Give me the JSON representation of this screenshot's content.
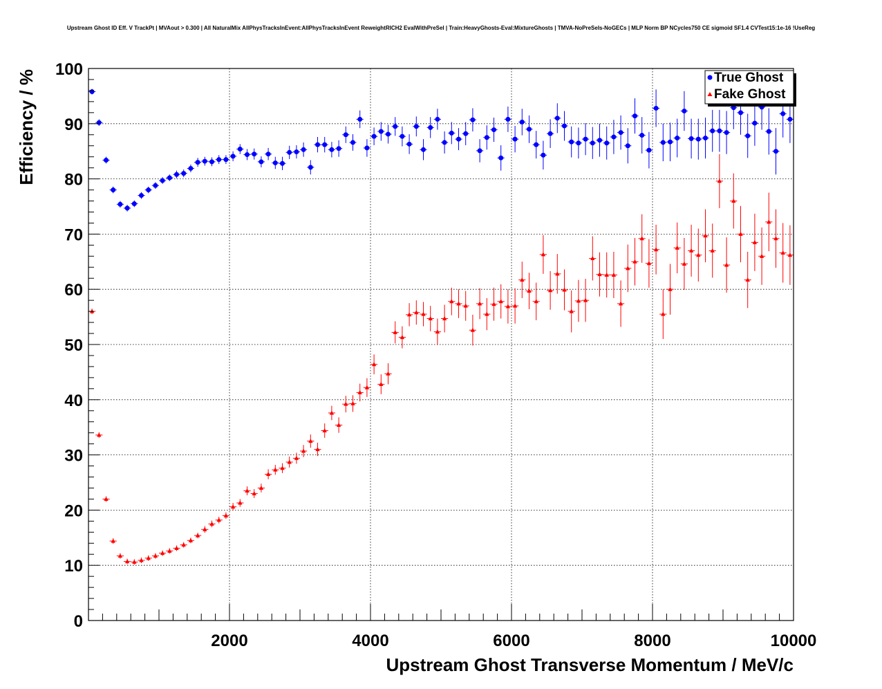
{
  "chart_data": {
    "type": "scatter",
    "title": "Upstream Ghost ID Eff. V TrackPt | MVAout > 0.300 | All NaturalMix AllPhysTracksInEvent:AllPhysTracksInEvent ReweightRICH2 EvalWithPreSel | Train:HeavyGhosts-Eval:MixtureGhosts | TMVA-NoPreSels-NoGECs | MLP Norm BP NCycles750 CE sigmoid SF1.4 CVTest15:1e-16 !UseReg",
    "xlabel": "Upstream Ghost Transverse Momentum / MeV/c",
    "ylabel": "Efficiency / %",
    "xlim": [
      0,
      10000
    ],
    "ylim": [
      0,
      100
    ],
    "grid": true,
    "legend_position": "top-right",
    "x_ticks": [
      "2000",
      "4000",
      "6000",
      "8000",
      "10000"
    ],
    "y_ticks": [
      "0",
      "10",
      "20",
      "30",
      "40",
      "50",
      "60",
      "70",
      "80",
      "90",
      "100"
    ],
    "x": [
      50,
      150,
      250,
      350,
      450,
      550,
      650,
      750,
      850,
      950,
      1050,
      1150,
      1250,
      1350,
      1450,
      1550,
      1650,
      1750,
      1850,
      1950,
      2050,
      2150,
      2250,
      2350,
      2450,
      2550,
      2650,
      2750,
      2850,
      2950,
      3050,
      3150,
      3250,
      3350,
      3450,
      3550,
      3650,
      3750,
      3850,
      3950,
      4050,
      4150,
      4250,
      4350,
      4450,
      4550,
      4650,
      4750,
      4850,
      4950,
      5050,
      5150,
      5250,
      5350,
      5450,
      5550,
      5650,
      5750,
      5850,
      5950,
      6050,
      6150,
      6250,
      6350,
      6450,
      6550,
      6650,
      6750,
      6850,
      6950,
      7050,
      7150,
      7250,
      7350,
      7450,
      7550,
      7650,
      7750,
      7850,
      7950,
      8050,
      8150,
      8250,
      8350,
      8450,
      8550,
      8650,
      8750,
      8850,
      8950,
      9050,
      9150,
      9250,
      9350,
      9450,
      9550,
      9650,
      9750,
      9850,
      9950
    ],
    "series": [
      {
        "name": "True Ghost",
        "marker": "circle",
        "color": "#0000ff",
        "values": [
          95.8,
          90.2,
          83.4,
          78.0,
          75.4,
          74.7,
          75.5,
          77.0,
          78.0,
          78.8,
          79.7,
          80.2,
          80.8,
          81.0,
          81.9,
          83.0,
          83.2,
          83.1,
          83.5,
          83.5,
          84.1,
          85.4,
          84.4,
          84.5,
          83.1,
          84.5,
          82.9,
          82.8,
          84.8,
          84.9,
          85.3,
          82.1,
          86.2,
          86.2,
          85.3,
          85.5,
          88.0,
          86.6,
          90.8,
          85.6,
          87.7,
          88.6,
          88.1,
          89.5,
          87.7,
          86.3,
          89.5,
          85.3,
          89.3,
          90.8,
          86.6,
          88.3,
          87.2,
          88.2,
          90.7,
          85.1,
          87.5,
          88.9,
          83.8,
          90.8,
          87.2,
          90.3,
          89.0,
          86.2,
          84.3,
          88.2,
          91.0,
          89.6,
          86.7,
          86.5,
          87.2,
          86.5,
          87.0,
          86.5,
          87.6,
          88.4,
          86.0,
          91.4,
          87.9,
          85.2,
          92.8,
          86.6,
          86.7,
          87.4,
          92.3,
          87.3,
          87.2,
          87.4,
          88.7,
          88.7,
          88.4,
          92.9,
          92.0,
          87.8,
          90.1,
          93.0,
          88.6,
          85.0,
          91.8,
          90.8
        ],
        "errors": [
          0.5,
          0.6,
          0.6,
          0.6,
          0.6,
          0.6,
          0.6,
          0.6,
          0.6,
          0.6,
          0.6,
          0.6,
          0.7,
          0.7,
          0.7,
          0.8,
          0.8,
          0.8,
          0.8,
          0.8,
          0.9,
          0.9,
          1.0,
          1.0,
          1.0,
          1.1,
          1.1,
          1.2,
          1.2,
          1.2,
          1.3,
          1.3,
          1.4,
          1.4,
          1.4,
          1.5,
          1.5,
          1.5,
          1.6,
          1.6,
          1.6,
          1.7,
          1.7,
          1.7,
          1.8,
          1.8,
          1.8,
          1.9,
          1.9,
          1.9,
          2.0,
          2.0,
          2.0,
          2.1,
          2.1,
          2.1,
          2.2,
          2.2,
          2.3,
          2.3,
          2.4,
          2.4,
          2.5,
          2.5,
          2.6,
          2.6,
          2.7,
          2.7,
          2.8,
          2.8,
          2.9,
          2.9,
          3.0,
          3.0,
          3.1,
          3.1,
          3.2,
          3.2,
          3.3,
          3.3,
          3.4,
          3.4,
          3.5,
          3.5,
          3.6,
          3.6,
          3.7,
          3.7,
          3.8,
          3.8,
          3.9,
          3.9,
          4.0,
          4.0,
          4.1,
          4.1,
          4.2,
          4.2,
          4.3,
          4.3
        ]
      },
      {
        "name": "Fake Ghost",
        "marker": "triangle",
        "color": "#ff0000",
        "values": [
          56.0,
          33.6,
          22.0,
          14.4,
          11.7,
          10.7,
          10.6,
          10.9,
          11.3,
          11.7,
          12.2,
          12.6,
          13.1,
          13.7,
          14.5,
          15.4,
          16.5,
          17.5,
          18.2,
          19.0,
          20.6,
          21.3,
          23.5,
          23.0,
          24.0,
          26.5,
          27.3,
          27.6,
          28.7,
          29.4,
          30.7,
          32.5,
          31.0,
          34.4,
          37.6,
          35.4,
          39.2,
          39.3,
          41.3,
          42.2,
          46.4,
          42.8,
          44.7,
          52.2,
          51.3,
          55.4,
          55.8,
          55.5,
          54.7,
          52.3,
          54.7,
          57.8,
          57.4,
          57.0,
          52.6,
          57.4,
          55.5,
          57.3,
          57.8,
          56.9,
          57.0,
          61.7,
          59.7,
          57.8,
          66.3,
          59.8,
          62.8,
          59.9,
          56.0,
          57.9,
          58.0,
          65.6,
          62.7,
          62.6,
          62.6,
          57.4,
          63.8,
          65.0,
          69.2,
          64.7,
          67.2,
          55.5,
          60.0,
          67.5,
          64.6,
          67.0,
          66.2,
          69.7,
          67.0,
          79.6,
          64.4,
          76.0,
          70.0,
          61.7,
          68.5,
          66.0,
          72.2,
          69.2,
          66.6,
          66.2
        ],
        "errors": [
          0.5,
          0.5,
          0.5,
          0.5,
          0.5,
          0.5,
          0.5,
          0.5,
          0.5,
          0.5,
          0.5,
          0.5,
          0.5,
          0.5,
          0.5,
          0.5,
          0.6,
          0.6,
          0.6,
          0.6,
          0.7,
          0.7,
          0.8,
          0.8,
          0.8,
          0.9,
          0.9,
          0.9,
          1.0,
          1.0,
          1.1,
          1.2,
          1.2,
          1.3,
          1.3,
          1.4,
          1.5,
          1.5,
          1.6,
          1.7,
          1.8,
          1.8,
          1.9,
          2.0,
          2.0,
          2.1,
          2.2,
          2.2,
          2.3,
          2.4,
          2.5,
          2.5,
          2.6,
          2.7,
          2.8,
          2.8,
          2.9,
          3.0,
          3.1,
          3.1,
          3.2,
          3.3,
          3.3,
          3.4,
          3.5,
          3.5,
          3.6,
          3.7,
          3.8,
          3.8,
          3.9,
          4.0,
          4.0,
          4.1,
          4.2,
          4.2,
          4.3,
          4.3,
          4.4,
          4.4,
          4.5,
          4.5,
          4.6,
          4.6,
          4.7,
          4.7,
          4.8,
          4.8,
          4.9,
          4.9,
          5.0,
          5.0,
          5.1,
          5.1,
          5.2,
          5.2,
          5.3,
          5.3,
          5.4,
          5.4
        ]
      }
    ]
  }
}
